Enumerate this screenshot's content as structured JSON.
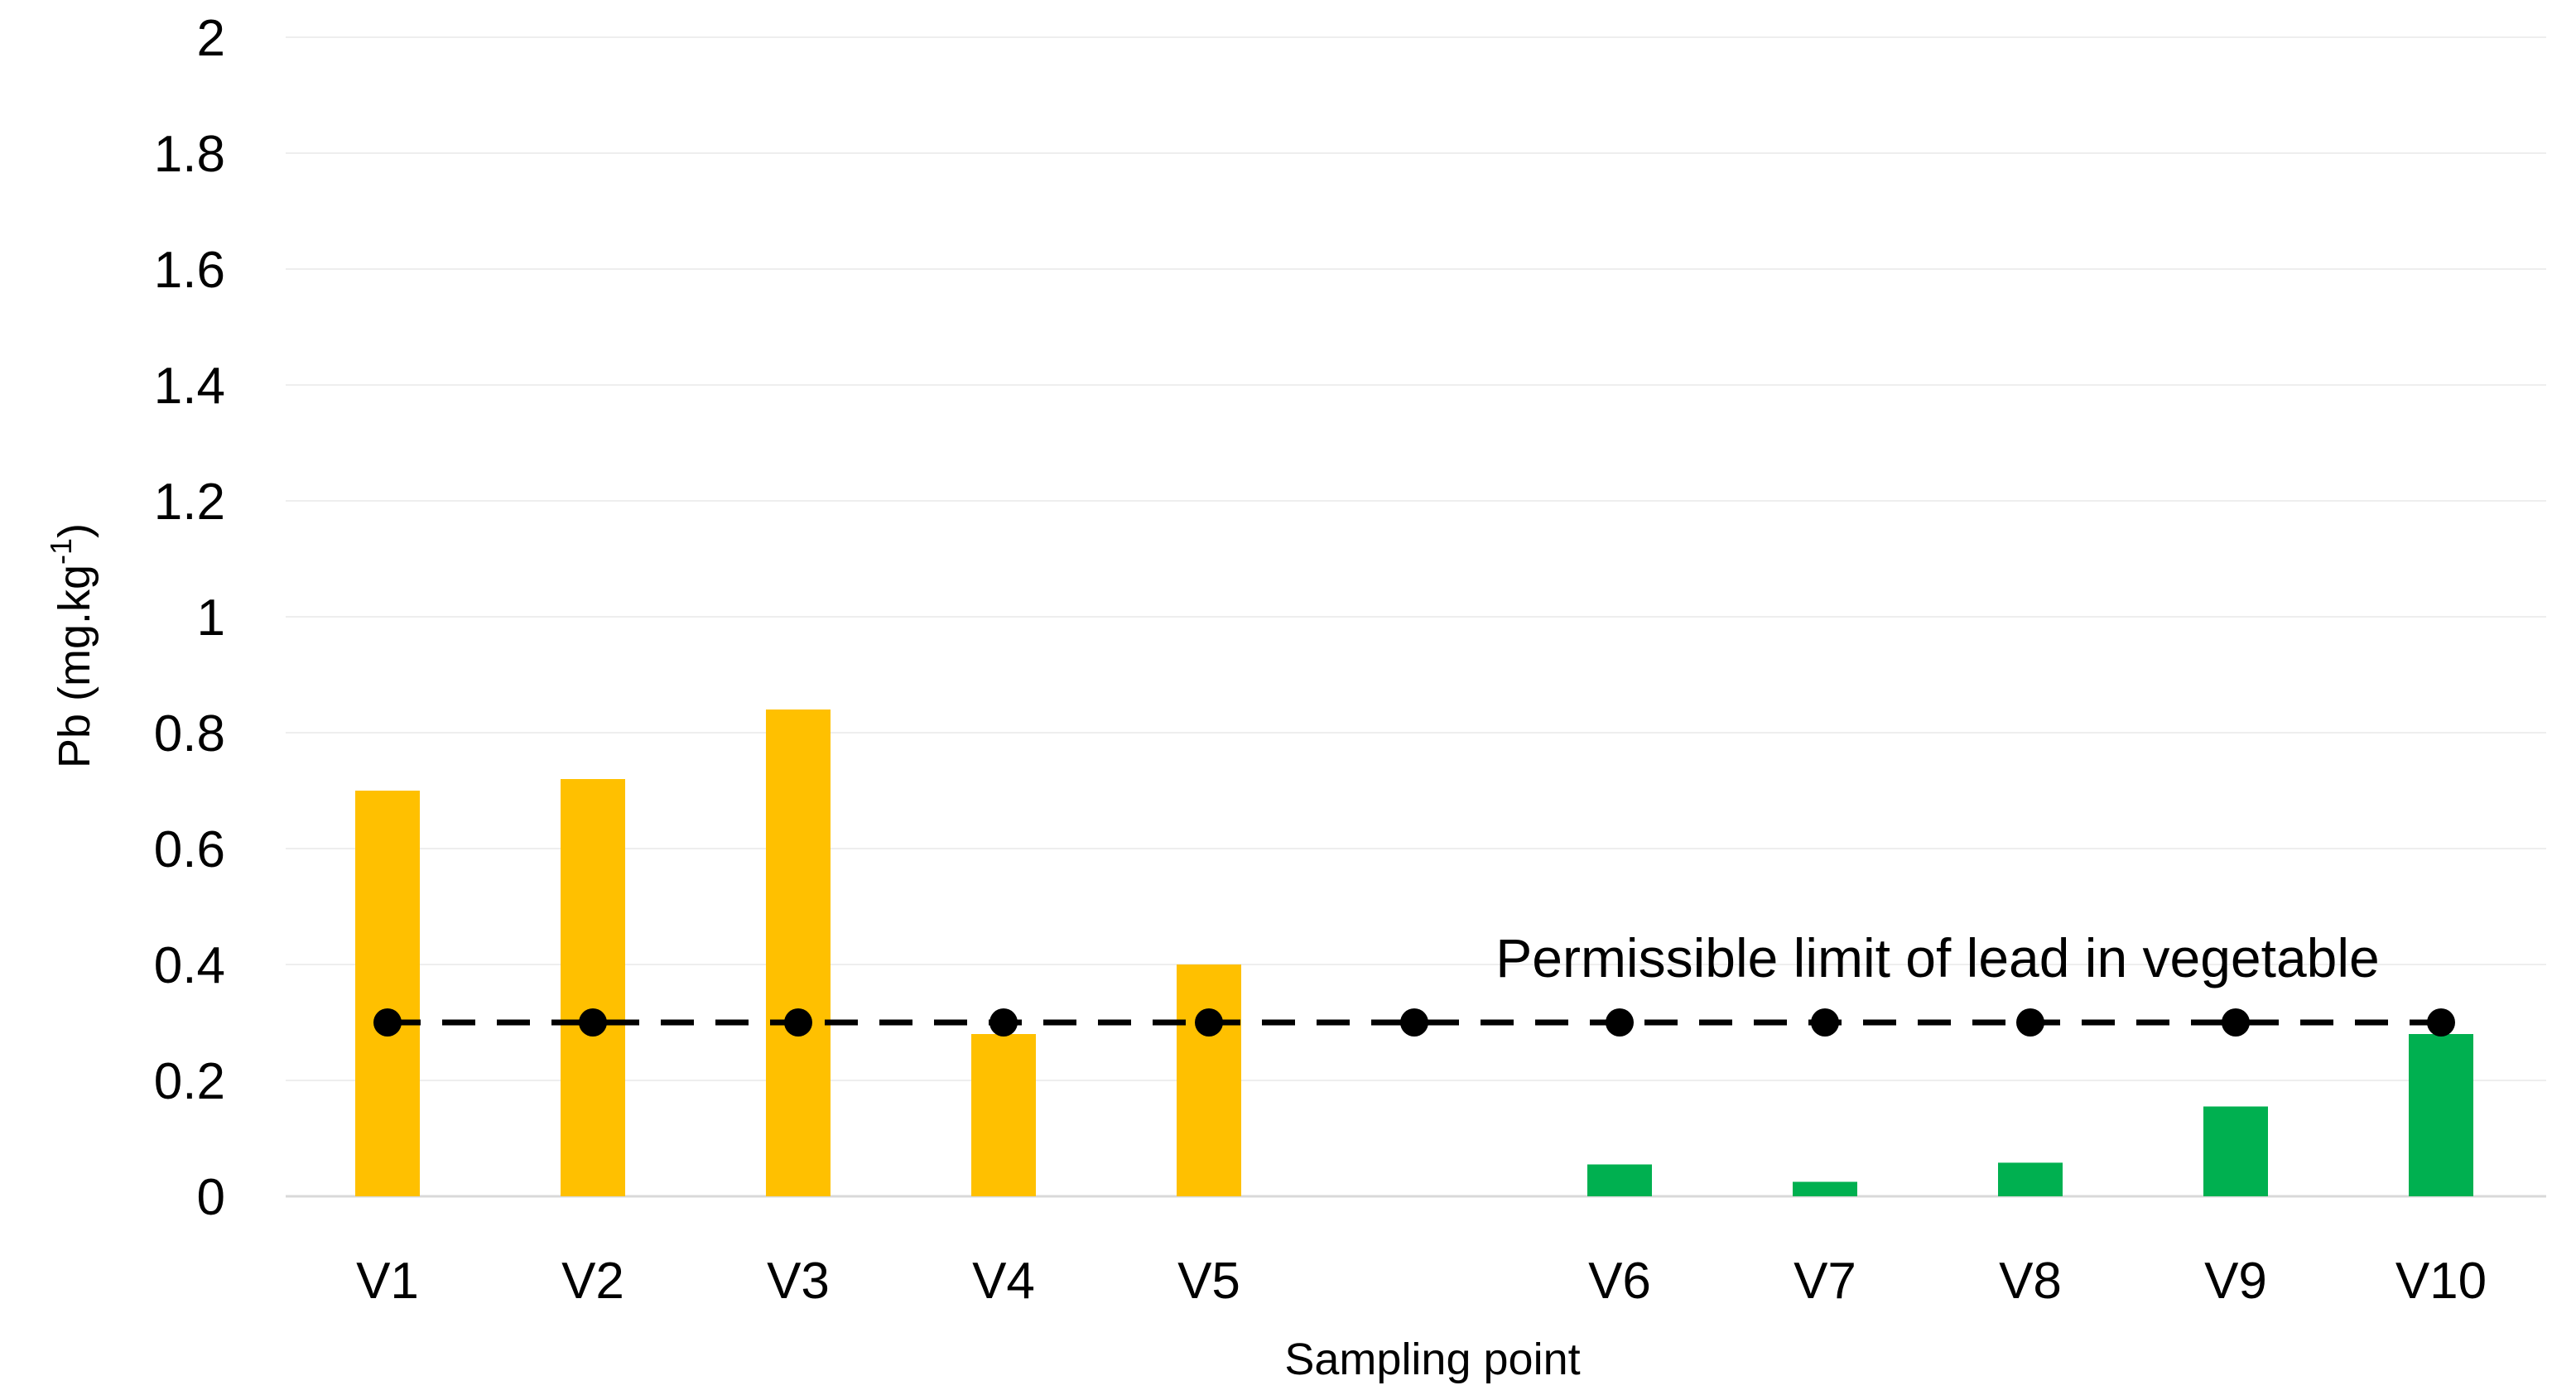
{
  "chart_data": {
    "type": "bar",
    "title": "",
    "xlabel": "Sampling point",
    "ylabel_main": "Pb (mg.kg",
    "ylabel_superscript": "-1",
    "ylabel_close": ")",
    "ylim": [
      0,
      2
    ],
    "yticks": [
      "0",
      "0.2",
      "0.4",
      "0.6",
      "0.8",
      "1",
      "1.2",
      "1.4",
      "1.6",
      "1.8",
      "2"
    ],
    "categories": [
      "V1",
      "V2",
      "V3",
      "V4",
      "V5",
      "",
      "V6",
      "V7",
      "V8",
      "V9",
      "V10"
    ],
    "values": [
      0.7,
      0.72,
      0.84,
      0.28,
      0.4,
      null,
      0.055,
      0.025,
      0.058,
      0.155,
      0.28
    ],
    "bar_colors": [
      "#FFC000",
      "#FFC000",
      "#FFC000",
      "#FFC000",
      "#FFC000",
      "",
      "#00B050",
      "#00B050",
      "#00B050",
      "#00B050",
      "#00B050"
    ],
    "limit_line": {
      "label": "Permissible limit of lead in vegetable",
      "value": 0.3,
      "color": "#000000",
      "style": "dashed with circle markers"
    },
    "grid": true,
    "legend": "none"
  }
}
